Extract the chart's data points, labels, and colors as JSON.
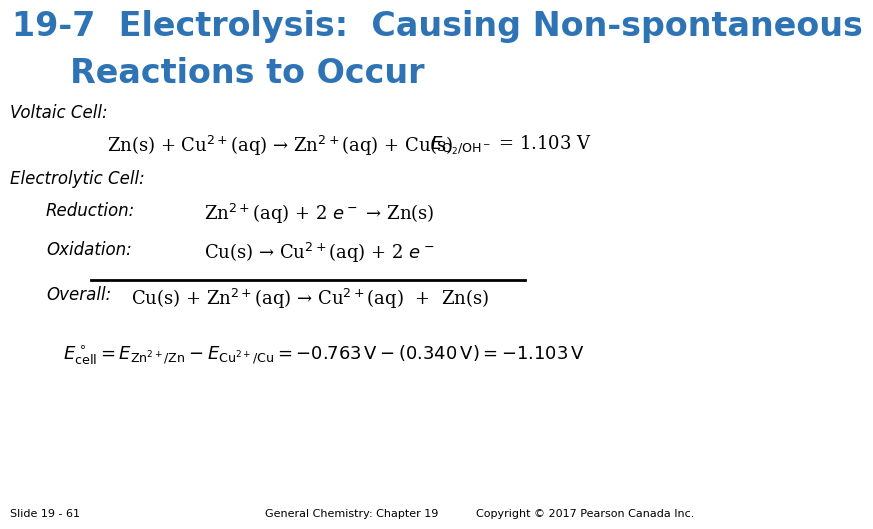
{
  "title_line1": "19-7  Electrolysis:  Causing Non-spontaneous",
  "title_line2": "Reactions to Occur",
  "title_color": "#2E74B5",
  "title_fontsize": 24,
  "bg_color": "#FFFFFF",
  "voltaic_label": "Voltaic Cell:",
  "voltaic_eq": "Zn(s) + Cu$^{2+}$(aq) → Zn$^{2+}$(aq) + Cu(s)",
  "voltaic_E": "$E_{\\mathrm{O_2/OH^-}}$ = 1.103 V",
  "electrolytic_label": "Electrolytic Cell:",
  "reduction_label": "Reduction:",
  "reduction_eq": "Zn$^{2+}$(aq) + 2 $e^-$ → Zn(s)",
  "oxidation_label": "Oxidation:",
  "oxidation_eq": "Cu(s) → Cu$^{2+}$(aq) + 2 $e^-$",
  "overall_label": "Overall:",
  "overall_eq": "Cu(s) + Zn$^{2+}$(aq) → Cu$^{2+}$(aq)  +  Zn(s)",
  "ecell_eq": "$E^\\circ_{\\mathrm{cell}} = E_{\\mathrm{Zn^{2+}/Zn}} - E_{\\mathrm{Cu^{2+}/Cu}} = -0.763\\,\\mathrm{V} - (0.340\\,\\mathrm{V}) = -1.103\\,\\mathrm{V}$",
  "footer_left": "Slide 19 - 61",
  "footer_center": "General Chemistry: Chapter 19",
  "footer_right": "Copyright © 2017 Pearson Canada Inc.",
  "label_fontsize": 12,
  "body_fontsize": 13,
  "footer_fontsize": 8
}
